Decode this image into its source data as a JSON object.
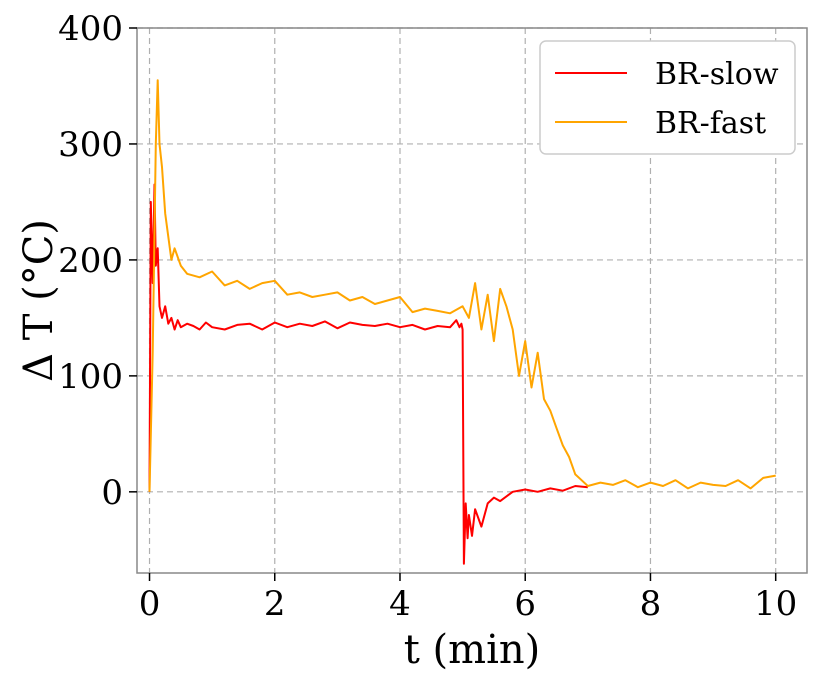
{
  "chart_data": {
    "type": "line",
    "xlabel": "t (min)",
    "ylabel": "Δ T (°C)",
    "xlim": [
      -0.2,
      10.5
    ],
    "ylim": [
      -70,
      400
    ],
    "xticks": [
      0,
      2,
      4,
      6,
      8,
      10
    ],
    "yticks": [
      0,
      100,
      200,
      300,
      400
    ],
    "grid": true,
    "grid_style": "dashed",
    "legend_position": "top-right",
    "series": [
      {
        "name": "BR-slow",
        "color": "#ff0000",
        "x": [
          0.0,
          0.02,
          0.05,
          0.08,
          0.1,
          0.13,
          0.16,
          0.2,
          0.25,
          0.3,
          0.35,
          0.4,
          0.45,
          0.5,
          0.6,
          0.7,
          0.8,
          0.9,
          1.0,
          1.2,
          1.4,
          1.6,
          1.8,
          2.0,
          2.2,
          2.4,
          2.6,
          2.8,
          3.0,
          3.2,
          3.4,
          3.6,
          3.8,
          4.0,
          4.2,
          4.4,
          4.6,
          4.8,
          4.9,
          4.95,
          4.98,
          5.0,
          5.02,
          5.05,
          5.08,
          5.1,
          5.15,
          5.2,
          5.3,
          5.4,
          5.5,
          5.6,
          5.8,
          6.0,
          6.2,
          6.4,
          6.6,
          6.8,
          7.0
        ],
        "y": [
          0,
          250,
          180,
          265,
          195,
          210,
          160,
          150,
          160,
          145,
          150,
          140,
          148,
          142,
          145,
          143,
          140,
          146,
          142,
          140,
          144,
          145,
          140,
          146,
          142,
          145,
          143,
          147,
          141,
          146,
          144,
          143,
          145,
          142,
          144,
          140,
          143,
          142,
          148,
          142,
          145,
          140,
          -62,
          -10,
          -40,
          -20,
          -38,
          -15,
          -30,
          -10,
          -5,
          -8,
          0,
          2,
          0,
          3,
          1,
          5,
          4
        ]
      },
      {
        "name": "BR-fast",
        "color": "#ffa500",
        "x": [
          0.0,
          0.05,
          0.1,
          0.13,
          0.16,
          0.2,
          0.25,
          0.3,
          0.35,
          0.4,
          0.5,
          0.6,
          0.8,
          1.0,
          1.2,
          1.4,
          1.6,
          1.8,
          2.0,
          2.2,
          2.4,
          2.6,
          2.8,
          3.0,
          3.2,
          3.4,
          3.6,
          3.8,
          4.0,
          4.2,
          4.4,
          4.6,
          4.8,
          5.0,
          5.1,
          5.2,
          5.3,
          5.4,
          5.5,
          5.6,
          5.7,
          5.8,
          5.9,
          6.0,
          6.1,
          6.2,
          6.3,
          6.4,
          6.5,
          6.6,
          6.7,
          6.8,
          6.9,
          7.0,
          7.2,
          7.4,
          7.6,
          7.8,
          8.0,
          8.2,
          8.4,
          8.6,
          8.8,
          9.0,
          9.2,
          9.4,
          9.6,
          9.8,
          10.0
        ],
        "y": [
          0,
          120,
          300,
          355,
          300,
          280,
          240,
          220,
          200,
          210,
          195,
          188,
          185,
          190,
          178,
          182,
          175,
          180,
          182,
          170,
          172,
          168,
          170,
          172,
          165,
          168,
          162,
          165,
          168,
          155,
          158,
          156,
          154,
          160,
          150,
          180,
          140,
          170,
          130,
          175,
          160,
          140,
          100,
          130,
          90,
          120,
          80,
          70,
          55,
          40,
          30,
          15,
          10,
          5,
          8,
          6,
          10,
          4,
          8,
          5,
          10,
          3,
          8,
          6,
          5,
          10,
          3,
          12,
          14
        ]
      }
    ]
  }
}
